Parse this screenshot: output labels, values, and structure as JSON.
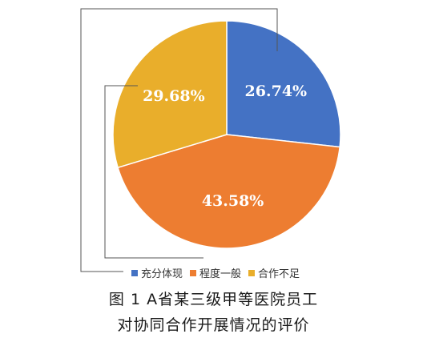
{
  "chart_data": {
    "type": "pie",
    "categories": [
      "充分体现",
      "程度一般",
      "合作不足"
    ],
    "values": [
      26.74,
      43.58,
      29.68
    ],
    "labels": [
      "26.74%",
      "43.58%",
      "29.68%"
    ],
    "colors": [
      "#4472C4",
      "#ED7D31",
      "#E9AE2B"
    ],
    "legend_position": "bottom",
    "start_angle_deg": 0,
    "direction": "clockwise"
  },
  "caption": {
    "line1": "图 1   A省某三级甲等医院员工",
    "line2": "对协同合作开展情况的评价"
  }
}
